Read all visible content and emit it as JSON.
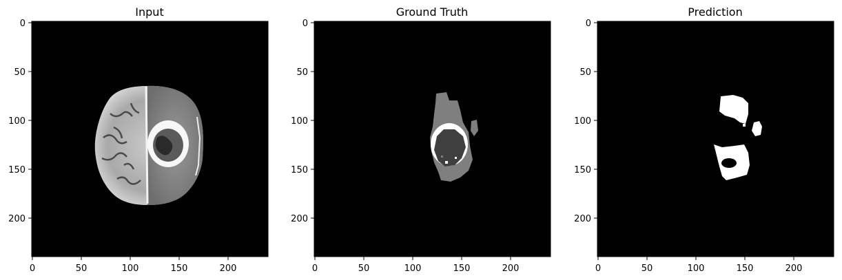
{
  "panels": [
    {
      "title": "Input",
      "xticks": [
        "0",
        "50",
        "100",
        "150",
        "200"
      ],
      "yticks": [
        "0",
        "50",
        "100",
        "150",
        "200"
      ]
    },
    {
      "title": "Ground Truth",
      "xticks": [
        "0",
        "50",
        "100",
        "150",
        "200"
      ],
      "yticks": [
        "0",
        "50",
        "100",
        "150",
        "200"
      ]
    },
    {
      "title": "Prediction",
      "xticks": [
        "0",
        "50",
        "100",
        "150",
        "200"
      ],
      "yticks": [
        "0",
        "50",
        "100",
        "150",
        "200"
      ]
    }
  ],
  "image_extent": [
    0,
    240
  ],
  "colors": {
    "background": "#000000",
    "brain_tissue": "#a8a8a8",
    "edema": "#7f7f7f",
    "enhancing_ring": "#ffffff",
    "necrotic_core": "#3f3f3f",
    "prediction_mask": "#ffffff"
  }
}
